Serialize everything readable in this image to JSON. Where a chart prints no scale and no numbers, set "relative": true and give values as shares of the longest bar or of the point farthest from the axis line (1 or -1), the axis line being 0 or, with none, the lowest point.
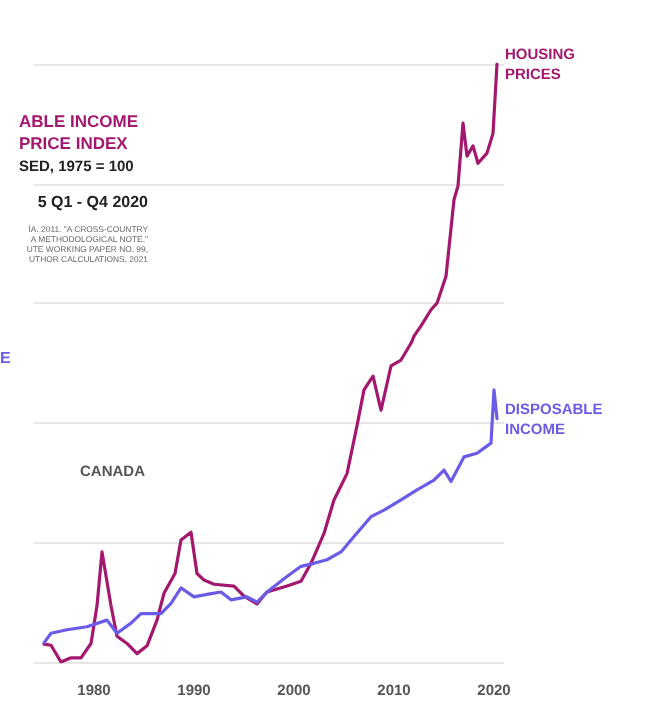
{
  "chart_data": {
    "type": "line",
    "title": "ABLE INCOME\nPRICE INDEX",
    "subtitle": "SED, 1975 = 100",
    "relative": true,
    "grid": "y",
    "marker": "none",
    "line_style": "solid",
    "legend": false,
    "xticks": [
      1980,
      1990,
      2000,
      2010,
      2020
    ],
    "xlim": [
      1974,
      2021
    ],
    "annotations": [
      "5 Q1 - Q4 2020",
      "ÍA. 2011. \"A CROSS-COUNTRY\n A METHODOLOGICAL NOTE.\"\nUTE WORKING PAPER NO. 99,\nUTHOR CALCULATIONS, 2021",
      "E",
      "CANADA"
    ],
    "series": [
      {
        "name": "HOUSING\nPRICES",
        "color": "#a3186e",
        "x": [
          1975,
          1975.7,
          1976.7,
          1977.7,
          1978.7,
          1979.7,
          1980.3,
          1980.8,
          1981.7,
          1982.3,
          1983.3,
          1984.3,
          1985.3,
          1986.3,
          1987,
          1988.1,
          1988.7,
          1989.7,
          1990.3,
          1991,
          1992,
          1994,
          1995,
          1996.3,
          1997.3,
          1999.3,
          2000.7,
          2001.7,
          2003,
          2004,
          2005.3,
          2006.3,
          2007,
          2007.9,
          2008.7,
          2009.7,
          2010.7,
          2011.7,
          2012,
          2012.7,
          2013.7,
          2014.3,
          2015.2,
          2016,
          2016.4,
          2016.9,
          2017.3,
          2017.9,
          2018.4,
          2019.3,
          2019.9,
          2020.3
        ],
        "values": [
          0.03,
          0.028,
          0,
          0.007,
          0.007,
          0.031,
          0.094,
          0.184,
          0.094,
          0.043,
          0.031,
          0.014,
          0.027,
          0.07,
          0.115,
          0.148,
          0.204,
          0.217,
          0.148,
          0.137,
          0.13,
          0.127,
          0.11,
          0.097,
          0.117,
          0.127,
          0.135,
          0.165,
          0.215,
          0.271,
          0.315,
          0.395,
          0.455,
          0.478,
          0.421,
          0.495,
          0.505,
          0.533,
          0.545,
          0.562,
          0.589,
          0.6,
          0.645,
          0.773,
          0.796,
          0.901,
          0.846,
          0.863,
          0.834,
          0.851,
          0.884,
          1
        ]
      },
      {
        "name": "DISPOSABLE\nINCOME",
        "color": "#6b5ce7",
        "x": [
          1975,
          1975.7,
          1977.3,
          1979.3,
          1981.3,
          1982.3,
          1983.7,
          1984.7,
          1986.7,
          1987.7,
          1988.7,
          1990,
          1991.3,
          1992.7,
          1993.7,
          1995.3,
          1996.3,
          1997.3,
          1999.3,
          2000.7,
          2002,
          2003.3,
          2004.7,
          2006,
          2007.7,
          2009,
          2010.7,
          2012.3,
          2014,
          2015,
          2015.7,
          2017,
          2018.3,
          2019.7,
          2020,
          2020.3
        ],
        "values": [
          0.032,
          0.048,
          0.054,
          0.059,
          0.07,
          0.048,
          0.065,
          0.081,
          0.081,
          0.098,
          0.124,
          0.109,
          0.113,
          0.117,
          0.104,
          0.109,
          0.1,
          0.117,
          0.143,
          0.16,
          0.165,
          0.171,
          0.184,
          0.21,
          0.243,
          0.254,
          0.271,
          0.288,
          0.304,
          0.321,
          0.302,
          0.343,
          0.349,
          0.366,
          0.455,
          0.407
        ]
      }
    ]
  }
}
